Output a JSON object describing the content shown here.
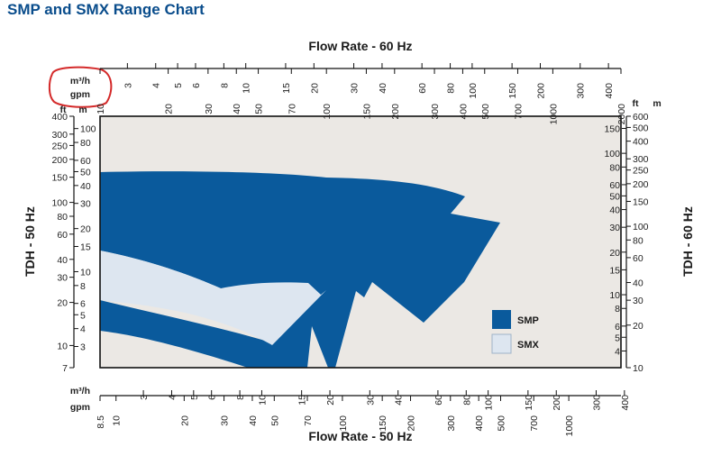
{
  "page": {
    "title": "SMP and SMX Range Chart"
  },
  "chart_data": {
    "type": "area",
    "title": "SMP and SMX Range Chart",
    "grid": false,
    "legend_placement": "bottom-right",
    "log_scale": true,
    "colors": {
      "SMP": "#0a5a9c",
      "SMX": "#dde6f0",
      "background": "#ebe8e4"
    },
    "axes": {
      "x_top": {
        "title": "Flow Rate - 60 Hz",
        "units": [
          "m³/h",
          "gpm"
        ],
        "gpm_range": [
          10,
          2000
        ],
        "m3h_ticks": [
          "3",
          "4",
          "5",
          "6",
          "8",
          "10",
          "15",
          "20",
          "30",
          "40",
          "60",
          "80",
          "100",
          "150",
          "200",
          "300",
          "400"
        ],
        "gpm_ticks": [
          "10",
          "20",
          "30",
          "40",
          "50",
          "70",
          "100",
          "150",
          "200",
          "300",
          "400",
          "500",
          "700",
          "1000",
          "2000"
        ]
      },
      "x_bottom": {
        "title": "Flow Rate - 50 Hz",
        "units": [
          "m³/h",
          "gpm"
        ],
        "gpm_range": [
          8.5,
          1700
        ],
        "m3h_ticks": [
          "3",
          "4",
          "5",
          "6",
          "8",
          "10",
          "15",
          "20",
          "30",
          "40",
          "60",
          "80",
          "100",
          "150",
          "200",
          "300",
          "400"
        ],
        "gpm_ticks": [
          "8.5",
          "10",
          "20",
          "30",
          "40",
          "50",
          "70",
          "100",
          "150",
          "200",
          "300",
          "400",
          "500",
          "700",
          "1000"
        ]
      },
      "y_left": {
        "title": "TDH - 50 Hz",
        "units": [
          "ft",
          "m"
        ],
        "ft_range": [
          7,
          400
        ],
        "ft_ticks": [
          "400",
          "300",
          "250",
          "200",
          "150",
          "100",
          "80",
          "60",
          "40",
          "30",
          "20",
          "10",
          "7"
        ],
        "m_ticks": [
          "100",
          "80",
          "60",
          "50",
          "40",
          "30",
          "20",
          "15",
          "10",
          "8",
          "6",
          "5",
          "4",
          "3"
        ]
      },
      "y_right": {
        "title": "TDH - 60 Hz",
        "units": [
          "ft",
          "m"
        ],
        "ft_range": [
          10,
          600
        ],
        "ft_ticks": [
          "600",
          "500",
          "400",
          "300",
          "250",
          "200",
          "150",
          "100",
          "80",
          "60",
          "40",
          "30",
          "20",
          "10"
        ],
        "m_ticks": [
          "150",
          "100",
          "80",
          "60",
          "50",
          "40",
          "30",
          "20",
          "15",
          "10",
          "8",
          "6",
          "5",
          "4"
        ]
      }
    },
    "series": [
      {
        "name": "SMP"
      },
      {
        "name": "SMX"
      }
    ]
  }
}
